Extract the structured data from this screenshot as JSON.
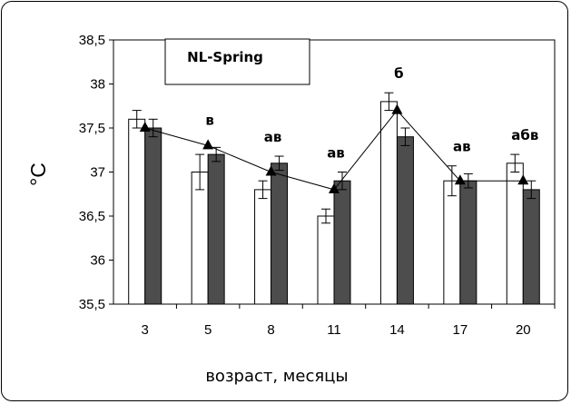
{
  "chart_data": {
    "type": "bar",
    "title": "NL-Spring",
    "xlabel": "возраст, месяцы",
    "ylabel": "°C",
    "ylim": [
      35.5,
      38.5
    ],
    "yticks": [
      "35,5",
      "36",
      "36,5",
      "37",
      "37,5",
      "38",
      "38,5"
    ],
    "categories": [
      "3",
      "5",
      "8",
      "11",
      "14",
      "17",
      "20"
    ],
    "series": [
      {
        "kind": "bar",
        "color": "#ffffff",
        "values": [
          37.6,
          37.0,
          36.8,
          36.5,
          37.8,
          36.9,
          37.1
        ],
        "errors": [
          0.1,
          0.2,
          0.1,
          0.08,
          0.1,
          0.17,
          0.1
        ]
      },
      {
        "kind": "bar",
        "color": "#4d4d4d",
        "values": [
          37.5,
          37.2,
          37.1,
          36.9,
          37.4,
          36.9,
          36.8
        ],
        "errors": [
          0.1,
          0.08,
          0.08,
          0.1,
          0.1,
          0.08,
          0.1
        ]
      },
      {
        "kind": "line",
        "marker": "triangle",
        "values": [
          37.5,
          37.3,
          37.0,
          36.8,
          37.7,
          36.9,
          36.9
        ]
      }
    ],
    "annotations": [
      "",
      "в",
      "ав",
      "ав",
      "б",
      "ав",
      "абв"
    ],
    "grid": false,
    "legend": "none"
  }
}
